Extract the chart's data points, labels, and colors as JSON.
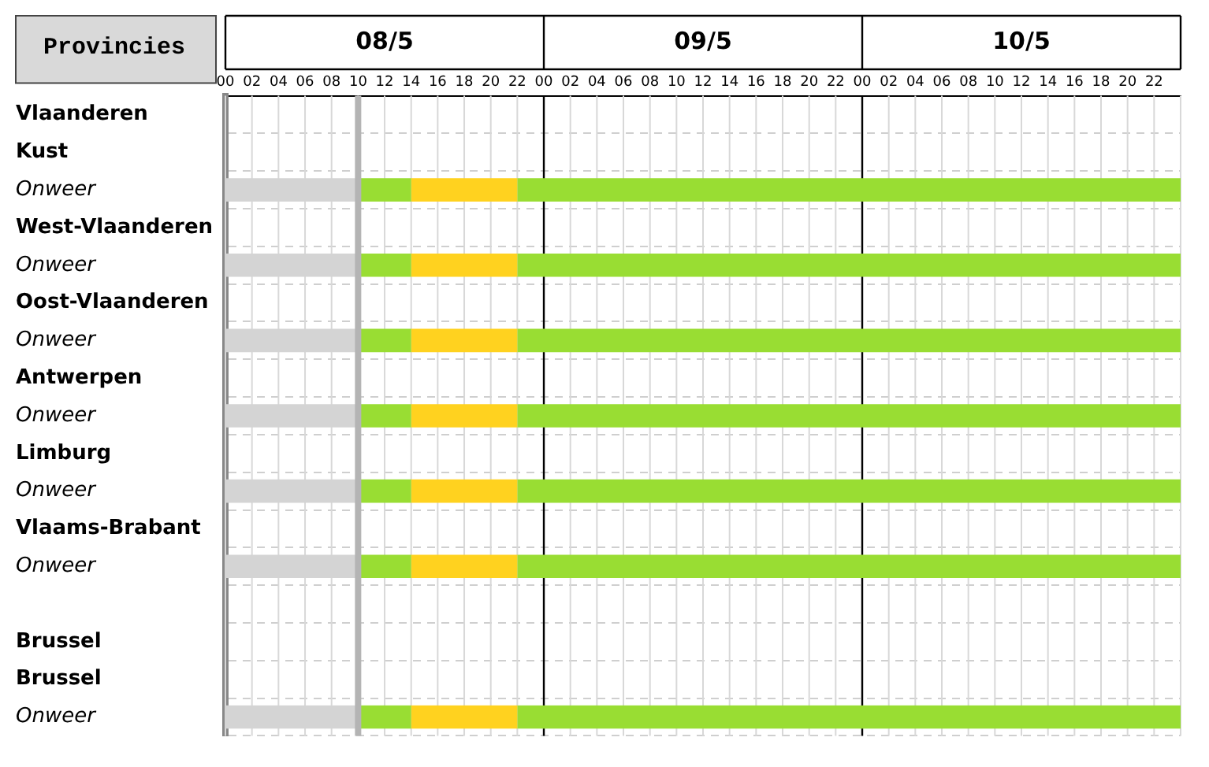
{
  "chart_data": {
    "type": "bar",
    "orientation": "horizontal",
    "stacked": true,
    "ylabel": "Provincies",
    "categories": [
      "Vlaanderen",
      "Kust",
      "Onweer",
      "West-Vlaanderen",
      "Onweer",
      "Oost-Vlaanderen",
      "Onweer",
      "Antwerpen",
      "Onweer",
      "Limburg",
      "Onweer",
      "Vlaams-Brabant",
      "Onweer",
      null,
      "Brussel",
      "Brussel",
      "Onweer"
    ],
    "series": [
      {
        "color": "#d4d4d4",
        "values": [
          null,
          null,
          10,
          null,
          10,
          null,
          10,
          null,
          10,
          null,
          10,
          null,
          10,
          null,
          null,
          null,
          10
        ]
      },
      {
        "color": "#99dd33",
        "values": [
          null,
          null,
          4,
          null,
          4,
          null,
          4,
          null,
          4,
          null,
          4,
          null,
          4,
          null,
          null,
          null,
          4
        ]
      },
      {
        "color": "#ffd21f",
        "values": [
          null,
          null,
          8,
          null,
          8,
          null,
          8,
          null,
          8,
          null,
          8,
          null,
          8,
          null,
          null,
          null,
          8
        ]
      },
      {
        "color": "#99dd33",
        "values": [
          null,
          null,
          50,
          null,
          50,
          null,
          50,
          null,
          50,
          null,
          50,
          null,
          50,
          null,
          null,
          null,
          50
        ]
      }
    ],
    "xlim": [
      0,
      72
    ],
    "xticks": [
      {
        "value": 0,
        "label": "00"
      },
      {
        "value": 2,
        "label": "02"
      },
      {
        "value": 4,
        "label": "04"
      },
      {
        "value": 6,
        "label": "06"
      },
      {
        "value": 8,
        "label": "08"
      },
      {
        "value": 10,
        "label": "10"
      },
      {
        "value": 12,
        "label": "12"
      },
      {
        "value": 14,
        "label": "14"
      },
      {
        "value": 16,
        "label": "16"
      },
      {
        "value": 18,
        "label": "18"
      },
      {
        "value": 20,
        "label": "20"
      },
      {
        "value": 22,
        "label": "22"
      },
      {
        "value": 24,
        "label": "00"
      },
      {
        "value": 26,
        "label": "02"
      },
      {
        "value": 28,
        "label": "04"
      },
      {
        "value": 30,
        "label": "06"
      },
      {
        "value": 32,
        "label": "08"
      },
      {
        "value": 34,
        "label": "10"
      },
      {
        "value": 36,
        "label": "12"
      },
      {
        "value": 38,
        "label": "14"
      },
      {
        "value": 40,
        "label": "16"
      },
      {
        "value": 42,
        "label": "18"
      },
      {
        "value": 44,
        "label": "20"
      },
      {
        "value": 46,
        "label": "22"
      },
      {
        "value": 48,
        "label": "00"
      },
      {
        "value": 50,
        "label": "02"
      },
      {
        "value": 52,
        "label": "04"
      },
      {
        "value": 54,
        "label": "06"
      },
      {
        "value": 56,
        "label": "08"
      },
      {
        "value": 58,
        "label": "10"
      },
      {
        "value": 60,
        "label": "12"
      },
      {
        "value": 62,
        "label": "14"
      },
      {
        "value": 64,
        "label": "16"
      },
      {
        "value": 66,
        "label": "18"
      },
      {
        "value": 68,
        "label": "20"
      },
      {
        "value": 70,
        "label": "22"
      }
    ],
    "annotations": [
      "08/5",
      "09/5",
      "10/5"
    ],
    "ref_lines": [
      {
        "axis": "x",
        "value": 10,
        "color": "#b4b4b4"
      }
    ],
    "grid": true,
    "legend": false
  }
}
